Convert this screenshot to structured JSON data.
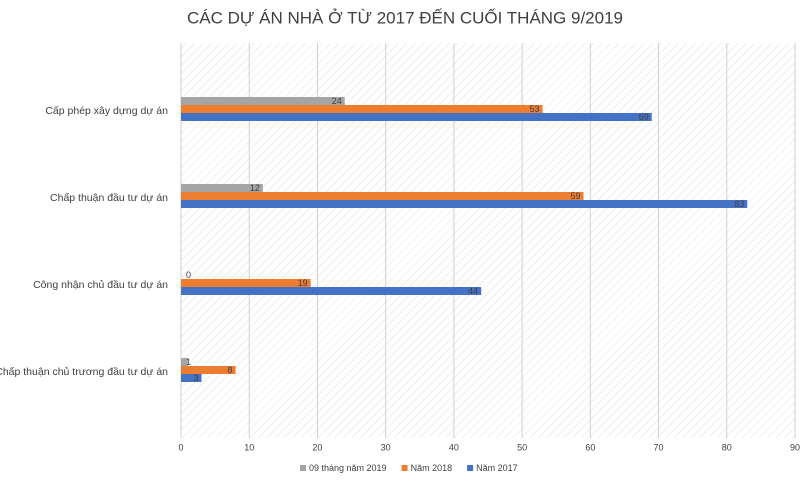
{
  "chart_data": {
    "type": "hbar",
    "title": "CÁC DỰ ÁN NHÀ Ở TỪ 2017 ĐẾN CUỐI THÁNG 9/2019",
    "categories": [
      "Cấp phép xây dựng dự án",
      "Chấp thuận đầu tư dự án",
      "Công nhận chủ đầu tư dự án",
      "Chấp thuận chủ trương đầu tư dự án"
    ],
    "series": [
      {
        "name": "09 tháng năm 2019",
        "color": "#a5a5a5",
        "values": [
          24,
          12,
          0,
          1
        ]
      },
      {
        "name": "Năm 2018",
        "color": "#ed7d31",
        "values": [
          53,
          59,
          19,
          8
        ]
      },
      {
        "name": "Năm 2017",
        "color": "#4472c4",
        "values": [
          69,
          83,
          44,
          3
        ]
      }
    ],
    "xlim": [
      0,
      90
    ],
    "xticks": [
      0,
      10,
      20,
      30,
      40,
      50,
      60,
      70,
      80,
      90
    ],
    "grid": true,
    "legend": "bottom"
  }
}
